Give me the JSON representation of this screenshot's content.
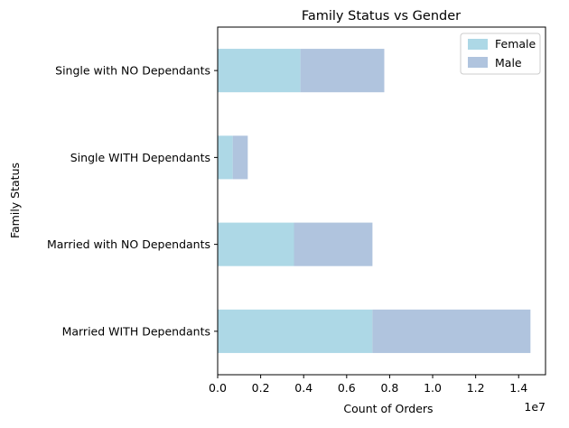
{
  "chart_data": {
    "type": "bar",
    "orientation": "horizontal",
    "stacked": true,
    "title": "Family Status vs Gender",
    "xlabel": "Count of Orders",
    "ylabel": "Family Status",
    "x_scale_label": "1e7",
    "xlim": [
      0,
      15250000
    ],
    "x_ticks": [
      0,
      2000000,
      4000000,
      6000000,
      8000000,
      10000000,
      12000000,
      14000000
    ],
    "x_tick_labels": [
      "0.0",
      "0.2",
      "0.4",
      "0.6",
      "0.8",
      "1.0",
      "1.2",
      "1.4"
    ],
    "categories": [
      "Married WITH Dependants",
      "Married with NO Dependants",
      "Single WITH Dependants",
      "Single with NO Dependants"
    ],
    "series": [
      {
        "name": "Female",
        "color": "#add8e6",
        "values": [
          7200000,
          3550000,
          700000,
          3850000
        ]
      },
      {
        "name": "Male",
        "color": "#b0c4de",
        "values": [
          7350000,
          3650000,
          700000,
          3900000
        ]
      }
    ],
    "legend_position": "upper right",
    "grid": false
  }
}
